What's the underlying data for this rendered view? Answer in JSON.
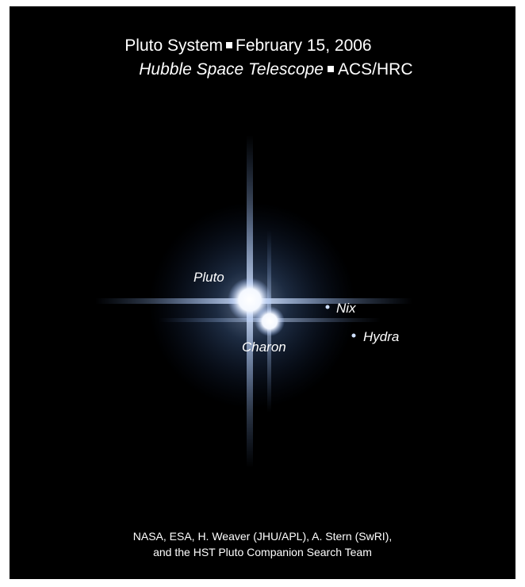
{
  "title": {
    "line1": [
      "Pluto System",
      "February 15, 2006"
    ],
    "line2": [
      "Hubble Space Telescope",
      "ACS/HRC"
    ]
  },
  "labels": {
    "pluto": "Pluto",
    "charon": "Charon",
    "nix": "Nix",
    "hydra": "Hydra"
  },
  "credit": [
    "NASA, ESA, H. Weaver (JHU/APL), A. Stern (SwRI),",
    "and the HST Pluto Companion Search Team"
  ]
}
